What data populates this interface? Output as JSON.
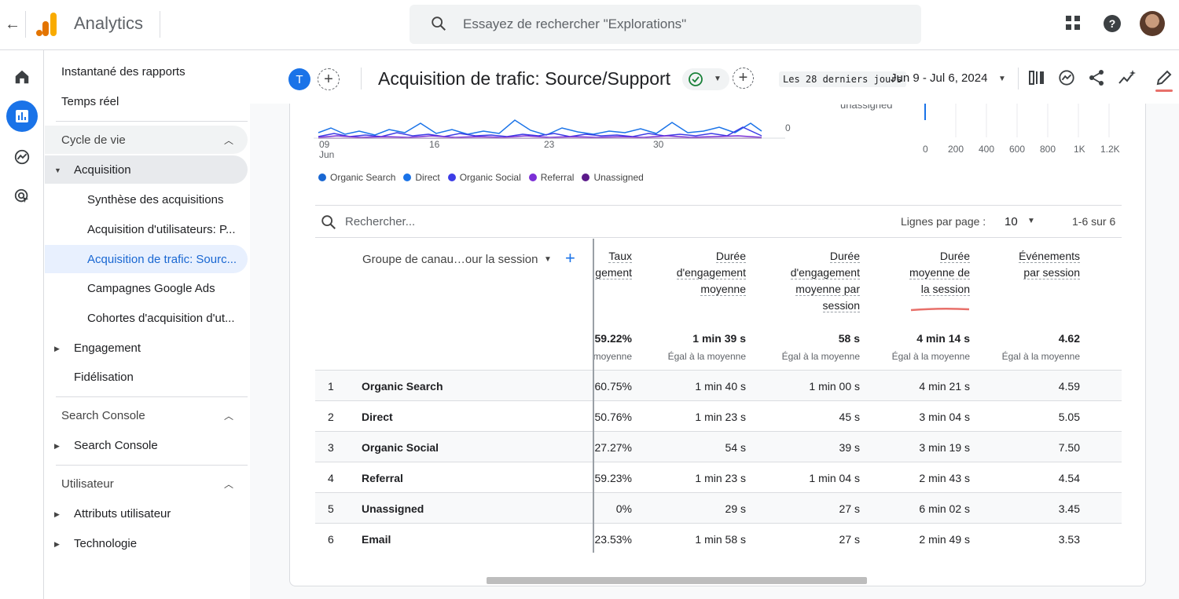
{
  "topbar": {
    "app_title": "Analytics",
    "search_placeholder": "Essayez de rechercher \"Explorations\""
  },
  "nav": {
    "items": [
      {
        "label": "Instantané des rapports"
      },
      {
        "label": "Temps réel"
      }
    ],
    "sections": [
      {
        "label": "Cycle de vie"
      },
      {
        "label": "Search Console"
      },
      {
        "label": "Utilisateur"
      }
    ],
    "lifecycle": {
      "acquisition": "Acquisition",
      "sub": [
        "Synthèse des acquisitions",
        "Acquisition d'utilisateurs: P...",
        "Acquisition de trafic: Sourc...",
        "Campagnes Google Ads",
        "Cohortes d'acquisition d'ut..."
      ],
      "engagement": "Engagement",
      "retention": "Fidélisation"
    },
    "search_console_item": "Search Console",
    "user_items": [
      "Attributs utilisateur",
      "Technologie"
    ]
  },
  "report": {
    "badge": "T",
    "title": "Acquisition de trafic: Source/Support",
    "period_chip": "Les 28 derniers jours",
    "date_range": "Jun 9 - Jul 6, 2024"
  },
  "chart": {
    "x_ticks": [
      "09",
      "16",
      "23",
      "30"
    ],
    "x_month": "Jun",
    "y_zero": "0",
    "bar_axis": [
      "0",
      "200",
      "400",
      "600",
      "800",
      "1K",
      "1.2K"
    ],
    "unassigned_label": "unassigned",
    "legend": [
      {
        "name": "Organic Search",
        "color": "#1967d2"
      },
      {
        "name": "Direct",
        "color": "#1a73e8"
      },
      {
        "name": "Organic Social",
        "color": "#3c3ce6"
      },
      {
        "name": "Referral",
        "color": "#7b2fd6"
      },
      {
        "name": "Unassigned",
        "color": "#5b1a8a"
      }
    ]
  },
  "table": {
    "search_placeholder": "Rechercher...",
    "rows_per_page_label": "Lignes par page :",
    "rows_per_page": "10",
    "pagination": "1-6 sur 6",
    "dimension_header": "Groupe de canau…our la session",
    "columns": [
      {
        "l1": "Taux",
        "l2": "gement",
        "l3": "",
        "l4": ""
      },
      {
        "l1": "Durée",
        "l2": "d'engagement",
        "l3": "moyenne",
        "l4": ""
      },
      {
        "l1": "Durée",
        "l2": "d'engagement",
        "l3": "moyenne par",
        "l4": "session"
      },
      {
        "l1": "Durée",
        "l2": "moyenne de",
        "l3": "la session",
        "l4": ""
      },
      {
        "l1": "Événements",
        "l2": "par session",
        "l3": "",
        "l4": ""
      }
    ],
    "totals": [
      "59.22%",
      "1 min 39 s",
      "58 s",
      "4 min 14 s",
      "4.62"
    ],
    "totals_sub": [
      "moyenne",
      "Égal à la moyenne",
      "Égal à la moyenne",
      "Égal à la moyenne",
      "Égal à la moyenne"
    ],
    "rows": [
      {
        "idx": "1",
        "name": "Organic Search",
        "v": [
          "60.75%",
          "1 min 40 s",
          "1 min 00 s",
          "4 min 21 s",
          "4.59"
        ]
      },
      {
        "idx": "2",
        "name": "Direct",
        "v": [
          "50.76%",
          "1 min 23 s",
          "45 s",
          "3 min 04 s",
          "5.05"
        ]
      },
      {
        "idx": "3",
        "name": "Organic Social",
        "v": [
          "27.27%",
          "54 s",
          "39 s",
          "3 min 19 s",
          "7.50"
        ]
      },
      {
        "idx": "4",
        "name": "Referral",
        "v": [
          "59.23%",
          "1 min 23 s",
          "1 min 04 s",
          "2 min 43 s",
          "4.54"
        ]
      },
      {
        "idx": "5",
        "name": "Unassigned",
        "v": [
          "0%",
          "29 s",
          "27 s",
          "6 min 02 s",
          "3.45"
        ]
      },
      {
        "idx": "6",
        "name": "Email",
        "v": [
          "23.53%",
          "1 min 58 s",
          "27 s",
          "2 min 49 s",
          "3.53"
        ]
      }
    ]
  }
}
